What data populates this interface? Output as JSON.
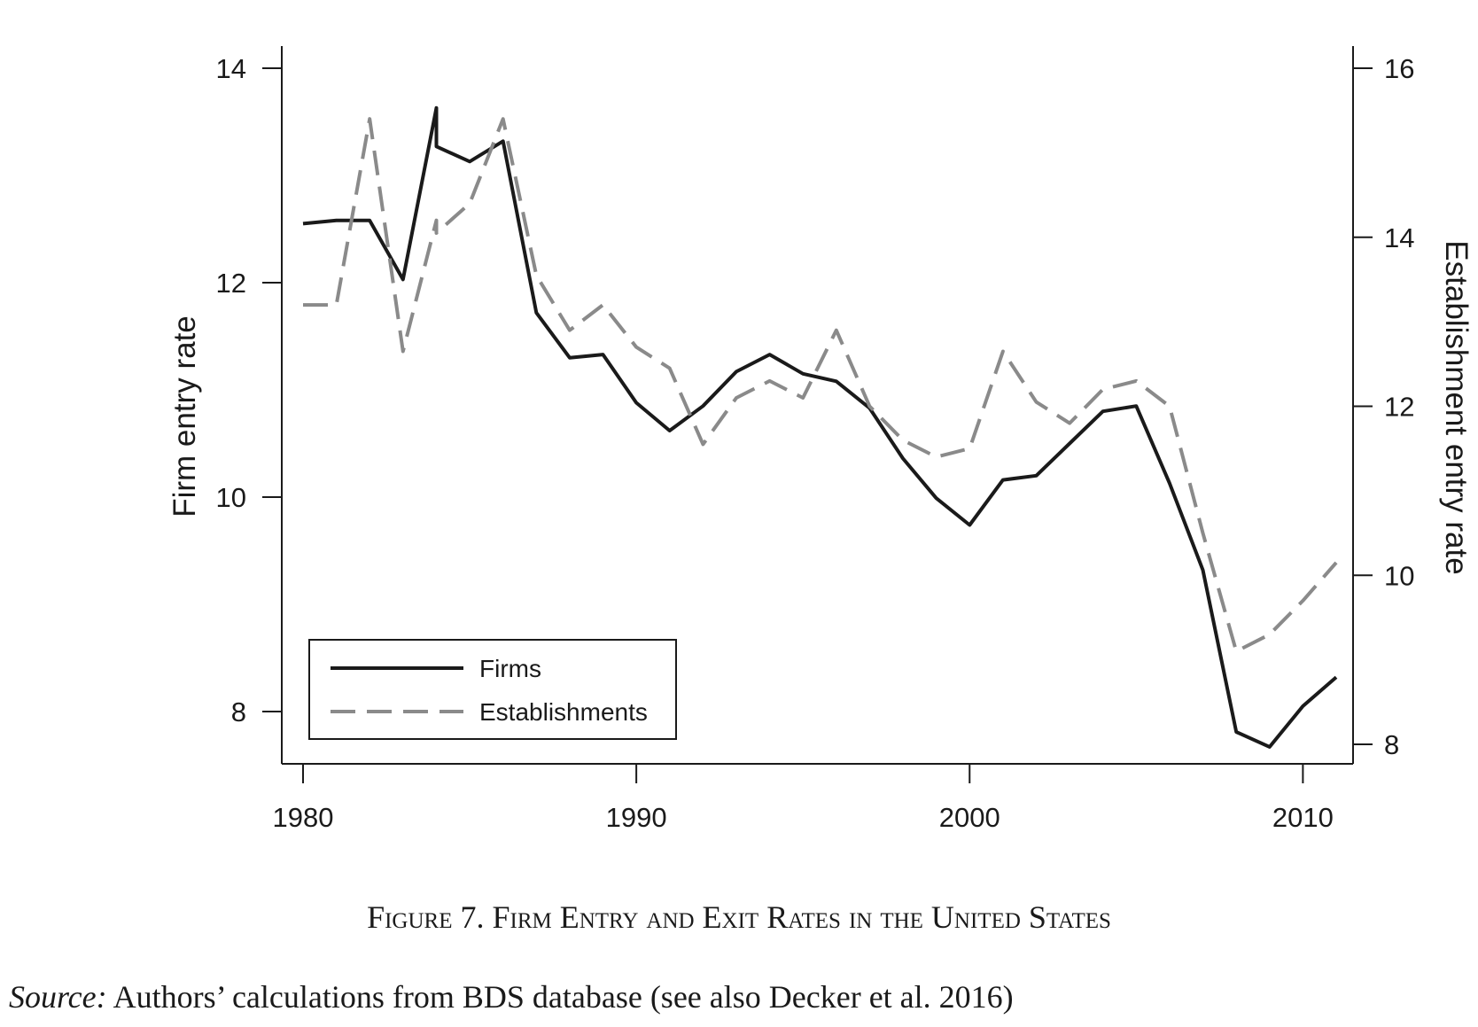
{
  "figure": {
    "caption": "Figure 7. Firm Entry and Exit Rates in the United States",
    "source_label": "Source:",
    "source_text": " Authors’ calculations from BDS database (see also Decker et al. 2016)"
  },
  "chart_data": {
    "type": "line",
    "title": "",
    "xlabel": "",
    "ylabel": "Firm entry rate",
    "y2label": "Establishment entry rate",
    "xlim": [
      1980,
      2011
    ],
    "ylim": [
      7.5,
      14.2
    ],
    "y2lim": [
      7.6,
      16.3
    ],
    "x_ticks": [
      1980,
      1990,
      2000,
      2010
    ],
    "y_ticks": [
      8,
      10,
      12,
      14
    ],
    "y2_ticks": [
      8,
      10,
      12,
      14,
      16
    ],
    "legend_position": "bottom-left",
    "grid": false,
    "series": [
      {
        "name": "Firms",
        "axis": "left",
        "style": "solid",
        "color": "#1a1a1a",
        "points": [
          [
            1980,
            12.55
          ],
          [
            1981,
            12.58
          ],
          [
            1982,
            12.58
          ],
          [
            1983,
            12.03
          ],
          [
            1984,
            13.63
          ],
          [
            1984,
            13.27
          ],
          [
            1985,
            13.13
          ],
          [
            1986,
            13.32
          ],
          [
            1987,
            11.72
          ],
          [
            1988,
            11.3
          ],
          [
            1989,
            11.33
          ],
          [
            1990,
            10.88
          ],
          [
            1991,
            10.62
          ],
          [
            1992,
            10.85
          ],
          [
            1993,
            11.17
          ],
          [
            1994,
            11.33
          ],
          [
            1995,
            11.15
          ],
          [
            1996,
            11.08
          ],
          [
            1997,
            10.83
          ],
          [
            1998,
            10.36
          ],
          [
            1999,
            9.99
          ],
          [
            2000,
            9.74
          ],
          [
            2001,
            10.16
          ],
          [
            2002,
            10.2
          ],
          [
            2003,
            10.5
          ],
          [
            2004,
            10.8
          ],
          [
            2005,
            10.85
          ],
          [
            2006,
            10.13
          ],
          [
            2007,
            9.32
          ],
          [
            2008,
            7.81
          ],
          [
            2009,
            7.67
          ],
          [
            2010,
            8.05
          ],
          [
            2011,
            8.32
          ]
        ]
      },
      {
        "name": "Establishments",
        "axis": "right",
        "style": "dashed",
        "color": "#8a8a8a",
        "points": [
          [
            1980,
            13.2
          ],
          [
            1981,
            13.2
          ],
          [
            1982,
            15.4
          ],
          [
            1983,
            12.65
          ],
          [
            1984,
            14.2
          ],
          [
            1984,
            14.05
          ],
          [
            1985,
            14.4
          ],
          [
            1986,
            15.4
          ],
          [
            1987,
            13.55
          ],
          [
            1988,
            12.9
          ],
          [
            1989,
            13.2
          ],
          [
            1990,
            12.7
          ],
          [
            1991,
            12.45
          ],
          [
            1992,
            11.55
          ],
          [
            1993,
            12.1
          ],
          [
            1994,
            12.3
          ],
          [
            1995,
            12.1
          ],
          [
            1996,
            12.9
          ],
          [
            1997,
            12.0
          ],
          [
            1998,
            11.6
          ],
          [
            1999,
            11.4
          ],
          [
            2000,
            11.5
          ],
          [
            2001,
            12.65
          ],
          [
            2002,
            12.05
          ],
          [
            2003,
            11.8
          ],
          [
            2004,
            12.2
          ],
          [
            2005,
            12.3
          ],
          [
            2006,
            12.0
          ],
          [
            2007,
            10.5
          ],
          [
            2008,
            9.1
          ],
          [
            2009,
            9.3
          ],
          [
            2010,
            9.7
          ],
          [
            2011,
            10.15
          ]
        ]
      }
    ]
  }
}
